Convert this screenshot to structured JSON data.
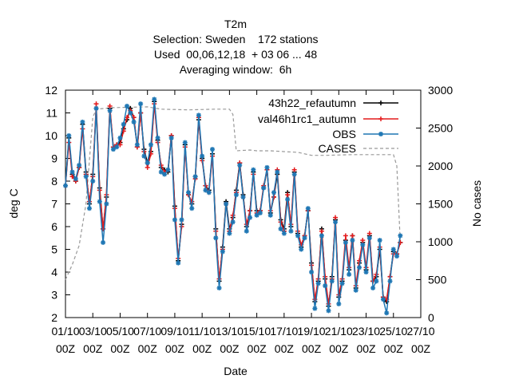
{
  "chart_data": {
    "type": "line",
    "title_lines": [
      "T2m",
      "Selection: Sweden    172 stations",
      "Used  00,06,12,18  + 03 06 ... 48",
      "Averaging window:  6h"
    ],
    "xlabel": "Date",
    "ylabel": "deg C",
    "y2label": "No cases",
    "xlim": [
      0,
      26
    ],
    "ylim": [
      2,
      12
    ],
    "y2lim": [
      0,
      3000
    ],
    "x_ticks": [
      {
        "x": 0,
        "line1": "01/10",
        "line2": "00Z"
      },
      {
        "x": 2,
        "line1": "03/10",
        "line2": "00Z"
      },
      {
        "x": 4,
        "line1": "05/10",
        "line2": "00Z"
      },
      {
        "x": 6,
        "line1": "07/10",
        "line2": "00Z"
      },
      {
        "x": 8,
        "line1": "09/10",
        "line2": "00Z"
      },
      {
        "x": 10,
        "line1": "11/10",
        "line2": "00Z"
      },
      {
        "x": 12,
        "line1": "13/10",
        "line2": "00Z"
      },
      {
        "x": 14,
        "line1": "15/10",
        "line2": "00Z"
      },
      {
        "x": 16,
        "line1": "17/10",
        "line2": "00Z"
      },
      {
        "x": 18,
        "line1": "19/10",
        "line2": "00Z"
      },
      {
        "x": 20,
        "line1": "21/10",
        "line2": "00Z"
      },
      {
        "x": 22,
        "line1": "23/10",
        "line2": "00Z"
      },
      {
        "x": 24,
        "line1": "25/10",
        "line2": "00Z"
      },
      {
        "x": 26,
        "line1": "27/10",
        "line2": "00Z"
      }
    ],
    "y_ticks": [
      2,
      3,
      4,
      5,
      6,
      7,
      8,
      9,
      10,
      11,
      12
    ],
    "y2_ticks": [
      0,
      500,
      1000,
      1500,
      2000,
      2500,
      3000
    ],
    "grid": false,
    "legend_position": "top-right",
    "x": [
      0.0,
      0.25,
      0.5,
      0.75,
      1.0,
      1.25,
      1.5,
      1.75,
      2.0,
      2.25,
      2.5,
      2.75,
      3.0,
      3.25,
      3.5,
      3.75,
      4.0,
      4.25,
      4.5,
      4.75,
      5.0,
      5.25,
      5.5,
      5.75,
      6.0,
      6.25,
      6.5,
      6.75,
      7.0,
      7.25,
      7.5,
      7.75,
      8.0,
      8.25,
      8.5,
      8.75,
      9.0,
      9.25,
      9.5,
      9.75,
      10.0,
      10.25,
      10.5,
      10.75,
      11.0,
      11.25,
      11.5,
      11.75,
      12.0,
      12.25,
      12.5,
      12.75,
      13.0,
      13.25,
      13.5,
      13.75,
      14.0,
      14.25,
      14.5,
      14.75,
      15.0,
      15.25,
      15.5,
      15.75,
      16.0,
      16.25,
      16.5,
      16.75,
      17.0,
      17.25,
      17.5,
      17.75,
      18.0,
      18.25,
      18.5,
      18.75,
      19.0,
      19.25,
      19.5,
      19.75,
      20.0,
      20.25,
      20.5,
      20.75,
      21.0,
      21.25,
      21.5,
      21.75,
      22.0,
      22.25,
      22.5,
      22.75,
      23.0,
      23.25,
      23.5,
      23.75,
      24.0,
      24.25,
      24.5
    ],
    "series": [
      {
        "name": "43h22_refautumn",
        "color": "#000000",
        "marker": "plus",
        "values": [
          7.8,
          9.9,
          8.3,
          8.0,
          8.6,
          10.5,
          8.4,
          7.0,
          8.3,
          11.2,
          7.7,
          5.9,
          7.3,
          11.2,
          9.5,
          9.6,
          9.7,
          10.3,
          10.7,
          11.2,
          10.8,
          9.5,
          11.0,
          9.4,
          8.8,
          9.3,
          11.5,
          9.8,
          8.6,
          8.5,
          8.4,
          10.0,
          6.9,
          4.5,
          6.1,
          9.6,
          7.4,
          7.0,
          8.2,
          10.7,
          9.0,
          7.8,
          7.6,
          9.2,
          5.9,
          3.6,
          5.1,
          7.1,
          5.9,
          6.4,
          7.6,
          8.8,
          7.4,
          6.0,
          6.7,
          8.4,
          6.7,
          6.7,
          7.7,
          8.5,
          6.6,
          7.3,
          8.3,
          6.3,
          5.9,
          7.5,
          6.0,
          8.4,
          5.7,
          5.1,
          5.6,
          6.7,
          4.4,
          2.7,
          3.6,
          5.9,
          3.7,
          2.5,
          3.8,
          6.3,
          2.9,
          3.6,
          5.4,
          4.1,
          5.6,
          3.3,
          4.4,
          5.3,
          4.1,
          5.6,
          3.6,
          3.8,
          5.0,
          2.9,
          2.7,
          3.8,
          4.9,
          4.8,
          5.3
        ]
      },
      {
        "name": "val46h1rc1_autumn",
        "color": "#e41a1c",
        "marker": "plus",
        "values": [
          7.8,
          9.7,
          8.2,
          8.0,
          8.6,
          10.3,
          8.3,
          7.1,
          8.2,
          11.4,
          7.6,
          5.9,
          7.4,
          11.3,
          9.5,
          9.6,
          9.6,
          10.2,
          10.8,
          11.1,
          10.8,
          9.5,
          11.0,
          9.3,
          8.6,
          9.2,
          11.4,
          9.7,
          8.7,
          8.4,
          8.5,
          10.0,
          6.8,
          4.6,
          6.0,
          9.5,
          7.4,
          7.1,
          8.1,
          10.8,
          8.9,
          7.8,
          7.5,
          9.1,
          5.8,
          3.7,
          5.0,
          7.0,
          5.8,
          6.5,
          7.5,
          8.8,
          7.3,
          6.1,
          6.7,
          8.3,
          6.6,
          6.7,
          7.8,
          8.5,
          6.7,
          7.3,
          8.5,
          6.2,
          5.8,
          7.4,
          6.1,
          8.5,
          5.8,
          5.2,
          5.6,
          6.7,
          4.3,
          2.8,
          3.7,
          5.8,
          3.8,
          2.6,
          3.7,
          6.4,
          3.0,
          3.7,
          5.6,
          4.2,
          5.6,
          3.4,
          4.5,
          5.4,
          4.2,
          5.7,
          3.6,
          3.9,
          5.1,
          2.9,
          2.8,
          3.8,
          4.8,
          4.8,
          5.3
        ]
      },
      {
        "name": "OBS",
        "color": "#1f77b4",
        "marker": "star",
        "values": [
          7.8,
          10.0,
          8.4,
          8.1,
          8.7,
          10.6,
          8.2,
          6.8,
          8.0,
          11.2,
          7.1,
          5.3,
          7.0,
          11.1,
          9.4,
          9.5,
          9.9,
          10.5,
          11.3,
          11.0,
          10.6,
          9.6,
          11.4,
          9.1,
          8.8,
          9.6,
          11.6,
          9.9,
          8.4,
          8.3,
          8.5,
          9.9,
          6.3,
          4.4,
          6.3,
          9.7,
          7.5,
          6.8,
          8.2,
          10.9,
          9.1,
          7.6,
          7.5,
          9.4,
          5.5,
          3.3,
          4.9,
          7.0,
          5.7,
          6.2,
          7.4,
          8.7,
          7.3,
          5.8,
          6.4,
          8.5,
          6.5,
          6.6,
          7.7,
          8.6,
          6.5,
          7.5,
          8.4,
          5.9,
          5.7,
          7.2,
          5.8,
          8.3,
          5.6,
          5.0,
          5.5,
          6.8,
          4.0,
          2.4,
          3.5,
          5.6,
          3.4,
          2.3,
          3.6,
          6.2,
          2.6,
          3.5,
          5.3,
          3.9,
          5.4,
          3.2,
          4.2,
          5.2,
          4.0,
          5.5,
          3.3,
          3.6,
          5.4,
          2.8,
          2.2,
          3.6,
          5.0,
          4.7,
          5.6
        ]
      },
      {
        "name": "CASES",
        "color": "#999999",
        "marker": "none",
        "axis": "y2",
        "dashed": true,
        "x": [
          0.0,
          0.5,
          1.0,
          1.5,
          2.0,
          2.25,
          3.5,
          6.0,
          7.0,
          9.0,
          11.0,
          12.0,
          12.25,
          12.5,
          13.5,
          14.0,
          15.0,
          16.0,
          17.0,
          18.0,
          19.0,
          21.0,
          24.0,
          24.25,
          24.5
        ],
        "values": [
          500,
          700,
          950,
          1500,
          2640,
          2750,
          2770,
          2780,
          2750,
          2740,
          2750,
          2750,
          2680,
          2200,
          2210,
          2200,
          2200,
          2190,
          2180,
          2140,
          2140,
          2150,
          2150,
          2000,
          1000
        ]
      }
    ]
  }
}
